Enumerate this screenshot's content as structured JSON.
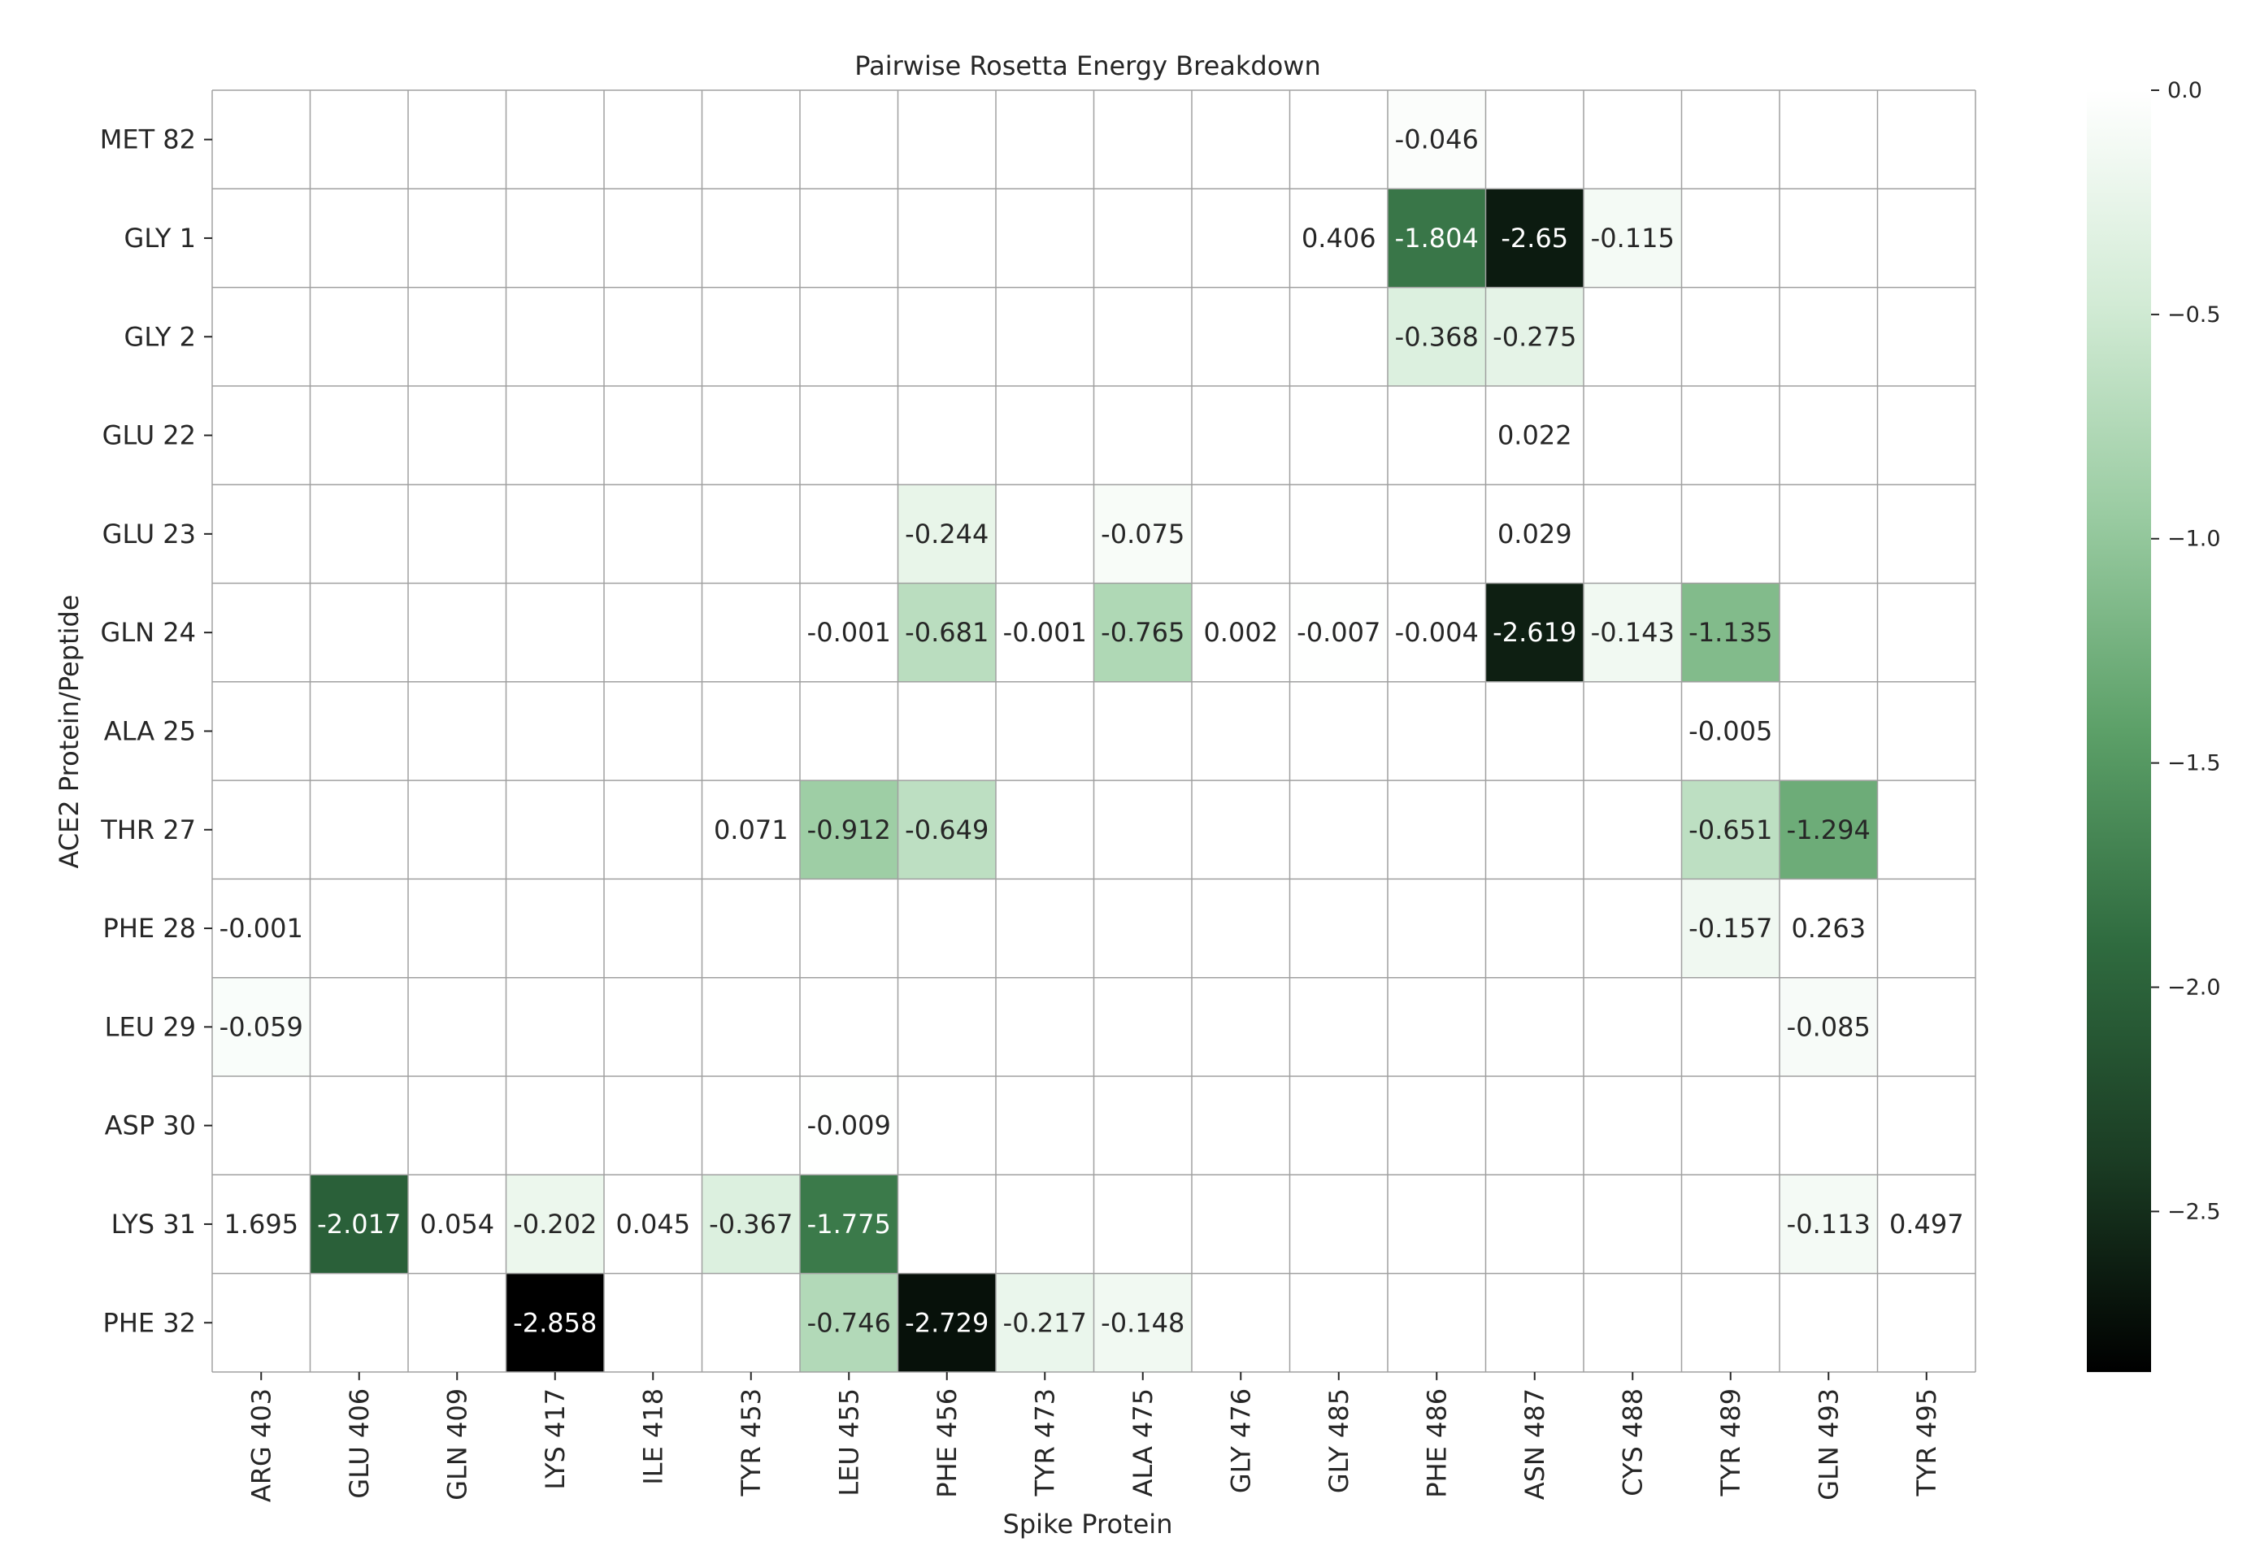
{
  "chart_data": {
    "type": "heatmap",
    "title": "Pairwise Rosetta Energy Breakdown",
    "xlabel": "Spike Protein",
    "ylabel": "ACE2 Protein/Peptide",
    "x": [
      "ARG 403",
      "GLU 406",
      "GLN 409",
      "LYS 417",
      "ILE 418",
      "TYR 453",
      "LEU 455",
      "PHE 456",
      "TYR 473",
      "ALA 475",
      "GLY 476",
      "GLY 485",
      "PHE 486",
      "ASN 487",
      "CYS 488",
      "TYR 489",
      "GLN 493",
      "TYR 495"
    ],
    "y": [
      "MET 82",
      "GLY 1",
      "GLY 2",
      "GLU 22",
      "GLU 23",
      "GLN 24",
      "ALA 25",
      "THR 27",
      "PHE 28",
      "LEU 29",
      "ASP 30",
      "LYS 31",
      "PHE 32"
    ],
    "values": [
      [
        null,
        null,
        null,
        null,
        null,
        null,
        null,
        null,
        null,
        null,
        null,
        null,
        -0.046,
        null,
        null,
        null,
        null,
        null
      ],
      [
        null,
        null,
        null,
        null,
        null,
        null,
        null,
        null,
        null,
        null,
        null,
        0.406,
        -1.804,
        -2.65,
        -0.115,
        null,
        null,
        null
      ],
      [
        null,
        null,
        null,
        null,
        null,
        null,
        null,
        null,
        null,
        null,
        null,
        null,
        -0.368,
        -0.275,
        null,
        null,
        null,
        null
      ],
      [
        null,
        null,
        null,
        null,
        null,
        null,
        null,
        null,
        null,
        null,
        null,
        null,
        null,
        0.022,
        null,
        null,
        null,
        null
      ],
      [
        null,
        null,
        null,
        null,
        null,
        null,
        null,
        -0.244,
        null,
        -0.075,
        null,
        null,
        null,
        0.029,
        null,
        null,
        null,
        null
      ],
      [
        null,
        null,
        null,
        null,
        null,
        null,
        -0.001,
        -0.681,
        -0.001,
        -0.765,
        0.002,
        -0.007,
        -0.004,
        -2.619,
        -0.143,
        -1.135,
        null,
        null
      ],
      [
        null,
        null,
        null,
        null,
        null,
        null,
        null,
        null,
        null,
        null,
        null,
        null,
        null,
        null,
        null,
        -0.005,
        null,
        null
      ],
      [
        null,
        null,
        null,
        null,
        null,
        0.071,
        -0.912,
        -0.649,
        null,
        null,
        null,
        null,
        null,
        null,
        null,
        -0.651,
        -1.294,
        null
      ],
      [
        -0.001,
        null,
        null,
        null,
        null,
        null,
        null,
        null,
        null,
        null,
        null,
        null,
        null,
        null,
        null,
        -0.157,
        0.263,
        null
      ],
      [
        -0.059,
        null,
        null,
        null,
        null,
        null,
        null,
        null,
        null,
        null,
        null,
        null,
        null,
        null,
        null,
        null,
        -0.085,
        null
      ],
      [
        null,
        null,
        null,
        null,
        null,
        null,
        -0.009,
        null,
        null,
        null,
        null,
        null,
        null,
        null,
        null,
        null,
        null,
        null
      ],
      [
        1.695,
        -2.017,
        0.054,
        -0.202,
        0.045,
        -0.367,
        -1.775,
        null,
        null,
        null,
        null,
        null,
        null,
        null,
        null,
        null,
        -0.113,
        0.497
      ],
      [
        null,
        null,
        null,
        -2.858,
        null,
        null,
        -0.746,
        -2.729,
        -0.217,
        -0.148,
        null,
        null,
        null,
        null,
        null,
        null,
        null,
        null
      ]
    ],
    "colorbar": {
      "min": -2.858,
      "max": 0.0,
      "ticks": [
        0.0,
        -0.5,
        -1.0,
        -1.5,
        -2.0,
        -2.5
      ],
      "tick_labels": [
        "0.0",
        "−0.5",
        "−1.0",
        "−1.5",
        "−2.0",
        "−2.5"
      ]
    },
    "colormap": [
      "#000000",
      "#1b3d24",
      "#2f6b3f",
      "#5ca068",
      "#99cba1",
      "#d2ebd5",
      "#ffffff"
    ],
    "grid": true,
    "grid_color": "#a0a0a0",
    "text_color_dark": "#262626",
    "text_color_light": "#ffffff"
  }
}
